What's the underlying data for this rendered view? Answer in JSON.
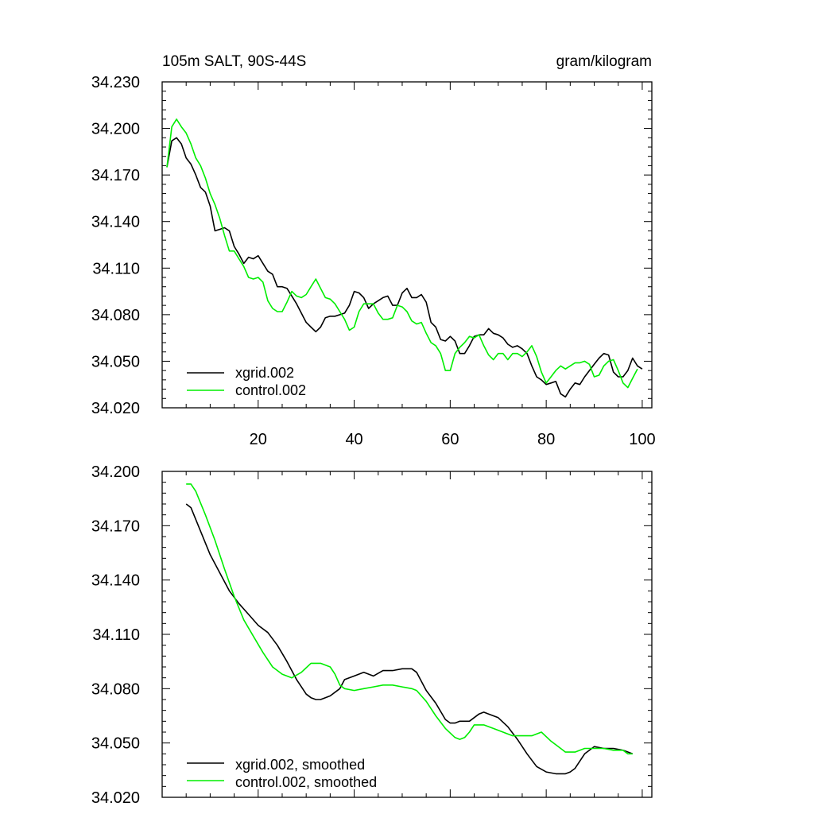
{
  "chart_data": [
    {
      "type": "line",
      "title_left": "105m SALT, 90S-44S",
      "title_right": "gram/kilogram",
      "xlim": [
        0,
        102
      ],
      "ylim": [
        34.02,
        34.23
      ],
      "yticks": [
        "34.230",
        "34.200",
        "34.170",
        "34.140",
        "34.110",
        "34.080",
        "34.050",
        "34.020"
      ],
      "xticks": [
        "20",
        "40",
        "60",
        "80",
        "100"
      ],
      "legend_position": "bottom-left",
      "series": [
        {
          "name": "xgrid.002",
          "color": "#000000",
          "x_start": 1,
          "values": [
            34.175,
            34.192,
            34.194,
            34.19,
            34.181,
            34.177,
            34.17,
            34.162,
            34.159,
            34.15,
            34.134,
            34.135,
            34.136,
            34.134,
            34.124,
            34.119,
            34.113,
            34.117,
            34.116,
            34.118,
            34.113,
            34.108,
            34.106,
            34.098,
            34.098,
            34.097,
            34.092,
            34.087,
            34.081,
            34.075,
            34.072,
            34.069,
            34.072,
            34.078,
            34.079,
            34.079,
            34.08,
            34.081,
            34.086,
            34.095,
            34.094,
            34.091,
            34.084,
            34.087,
            34.089,
            34.091,
            34.092,
            34.086,
            34.086,
            34.094,
            34.097,
            34.091,
            34.091,
            34.093,
            34.088,
            34.075,
            34.072,
            34.064,
            34.063,
            34.066,
            34.063,
            34.055,
            34.055,
            34.06,
            34.066,
            34.067,
            34.067,
            34.071,
            34.068,
            34.067,
            34.065,
            34.061,
            34.059,
            34.06,
            34.058,
            34.055,
            34.047,
            34.04,
            34.038,
            34.035,
            34.036,
            34.037,
            34.029,
            34.027,
            34.032,
            34.036,
            34.035,
            34.04,
            34.044,
            34.048,
            34.052,
            34.055,
            34.054,
            34.043,
            34.04,
            34.04,
            34.044,
            34.052,
            34.047,
            34.045
          ]
        },
        {
          "name": "control.002",
          "color": "#00ee00",
          "x_start": 1,
          "values": [
            34.175,
            34.201,
            34.206,
            34.201,
            34.197,
            34.19,
            34.181,
            34.176,
            34.168,
            34.158,
            34.151,
            34.142,
            34.131,
            34.121,
            34.121,
            34.116,
            34.111,
            34.104,
            34.103,
            34.104,
            34.101,
            34.089,
            34.084,
            34.082,
            34.082,
            34.088,
            34.095,
            34.092,
            34.091,
            34.093,
            34.098,
            34.103,
            34.097,
            34.091,
            34.09,
            34.087,
            34.082,
            34.077,
            34.07,
            34.072,
            34.082,
            34.087,
            34.087,
            34.087,
            34.081,
            34.077,
            34.077,
            34.078,
            34.086,
            34.085,
            34.082,
            34.076,
            34.074,
            34.075,
            34.068,
            34.062,
            34.06,
            34.055,
            34.044,
            34.044,
            34.055,
            34.059,
            34.062,
            34.066,
            34.065,
            34.067,
            34.06,
            34.054,
            34.051,
            34.055,
            34.055,
            34.051,
            34.055,
            34.055,
            34.053,
            34.056,
            34.06,
            34.053,
            34.043,
            34.036,
            34.04,
            34.044,
            34.047,
            34.045,
            34.047,
            34.049,
            34.049,
            34.05,
            34.048,
            34.04,
            34.041,
            34.047,
            34.05,
            34.051,
            34.044,
            34.036,
            34.033,
            34.039,
            34.045
          ]
        }
      ]
    },
    {
      "type": "line",
      "xlim": [
        0,
        102
      ],
      "ylim": [
        34.02,
        34.2
      ],
      "yticks": [
        "34.200",
        "34.170",
        "34.140",
        "34.110",
        "34.080",
        "34.050",
        "34.020"
      ],
      "legend_position": "bottom-left",
      "series": [
        {
          "name": "xgrid.002, smoothed",
          "color": "#000000",
          "x": [
            5,
            6,
            8,
            10,
            12,
            14,
            16,
            18,
            20,
            22,
            24,
            26,
            28,
            30,
            31,
            32,
            33,
            34,
            35,
            37,
            38,
            40,
            42,
            44,
            46,
            48,
            50,
            52,
            53,
            55,
            57,
            59,
            60,
            61,
            62,
            64,
            66,
            67,
            68,
            70,
            72,
            74,
            76,
            78,
            80,
            82,
            83,
            84,
            85,
            86,
            88,
            90,
            92,
            94,
            96,
            98
          ],
          "values": [
            34.182,
            34.18,
            34.167,
            34.154,
            34.144,
            34.134,
            34.127,
            34.121,
            34.115,
            34.111,
            34.104,
            34.095,
            34.085,
            34.077,
            34.075,
            34.074,
            34.074,
            34.075,
            34.076,
            34.08,
            34.085,
            34.087,
            34.089,
            34.087,
            34.09,
            34.09,
            34.091,
            34.091,
            34.089,
            34.079,
            34.072,
            34.063,
            34.061,
            34.061,
            34.062,
            34.062,
            34.066,
            34.067,
            34.066,
            34.064,
            34.059,
            34.052,
            34.044,
            34.037,
            34.034,
            34.033,
            34.033,
            34.033,
            34.034,
            34.036,
            34.044,
            34.048,
            34.047,
            34.047,
            34.046,
            34.044
          ]
        },
        {
          "name": "control.002, smoothed",
          "color": "#00ee00",
          "x": [
            5,
            6,
            7,
            9,
            11,
            13,
            15,
            17,
            19,
            21,
            23,
            25,
            27,
            29,
            31,
            33,
            35,
            36,
            37,
            38,
            40,
            42,
            44,
            46,
            48,
            50,
            52,
            53,
            55,
            57,
            59,
            61,
            62,
            63,
            64,
            65,
            67,
            69,
            71,
            73,
            75,
            77,
            79,
            81,
            82,
            83,
            84,
            86,
            88,
            90,
            92,
            94,
            96,
            97,
            98
          ],
          "values": [
            34.193,
            34.193,
            34.189,
            34.176,
            34.162,
            34.146,
            34.131,
            34.118,
            34.109,
            34.1,
            34.092,
            34.088,
            34.086,
            34.089,
            34.094,
            34.094,
            34.092,
            34.088,
            34.082,
            34.08,
            34.079,
            34.08,
            34.081,
            34.082,
            34.082,
            34.081,
            34.08,
            34.079,
            34.073,
            34.065,
            34.058,
            34.053,
            34.052,
            34.053,
            34.056,
            34.06,
            34.06,
            34.058,
            34.056,
            34.054,
            34.054,
            34.054,
            34.056,
            34.051,
            34.049,
            34.047,
            34.045,
            34.045,
            34.047,
            34.047,
            34.047,
            34.046,
            34.046,
            34.044,
            34.044
          ]
        }
      ]
    }
  ]
}
